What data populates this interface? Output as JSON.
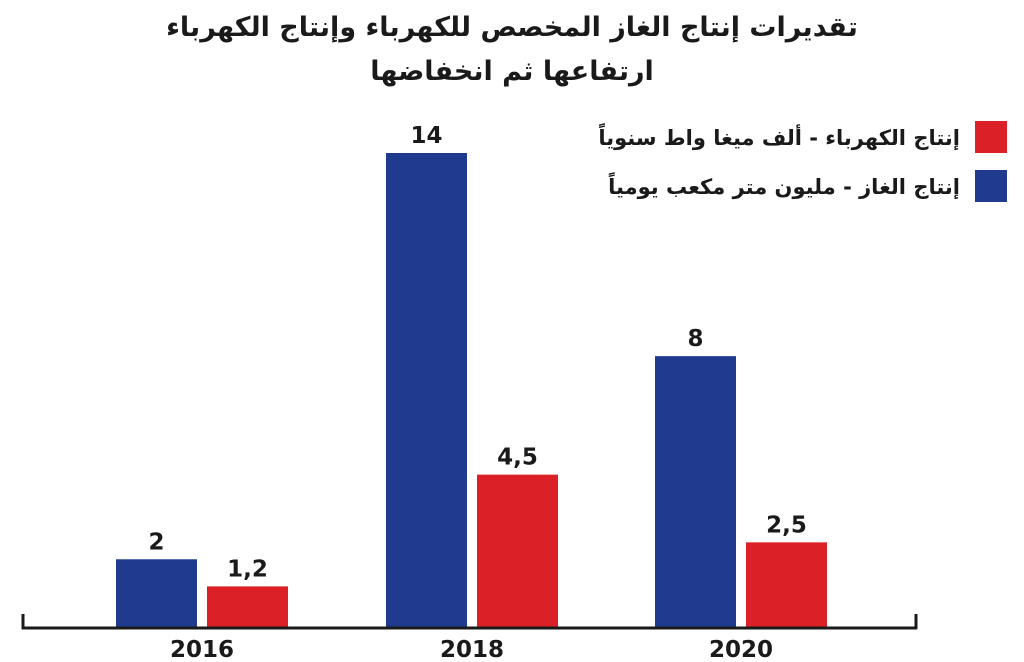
{
  "chart_data": {
    "type": "bar",
    "title": "تقديرات إنتاج الغاز المخصص للكهرباء وإنتاج الكهرباء",
    "subtitle": "ارتفاعها ثم انخفاضها",
    "categories": [
      "2016",
      "2018",
      "2020"
    ],
    "series": [
      {
        "name": "إنتاج الغاز - مليون متر مكعب يومياً",
        "color": "#203a8f",
        "values": [
          2,
          14,
          8
        ],
        "value_labels": [
          "2",
          "14",
          "8"
        ]
      },
      {
        "name": "إنتاج الكهرباء - ألف ميغا واط سنوياً",
        "color": "#db2127",
        "values": [
          1.2,
          4.5,
          2.5
        ],
        "value_labels": [
          "1,2",
          "4,5",
          "2,5"
        ]
      }
    ],
    "legend": [
      {
        "label": "إنتاج الكهرباء - ألف ميغا واط سنوياً",
        "color": "#db2127"
      },
      {
        "label": "إنتاج الغاز - مليون متر مكعب يومياً",
        "color": "#203a8f"
      }
    ],
    "legend_position": "top-right",
    "ylim": [
      0,
      14
    ],
    "grid": false,
    "axis_color": "#1a1a1a"
  }
}
